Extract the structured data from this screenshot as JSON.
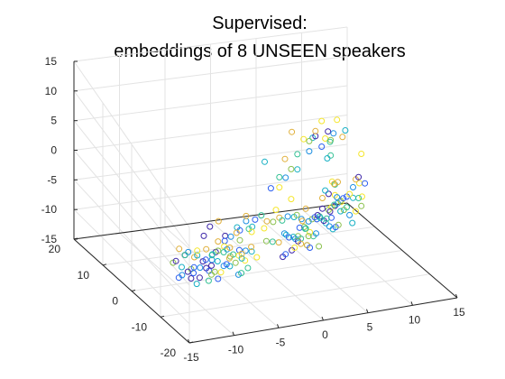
{
  "chart_data": {
    "type": "scatter",
    "subtype": "scatter3d",
    "title_lines": [
      "Supervised:",
      "embeddings of 8 UNSEEN speakers"
    ],
    "xlabel": "",
    "ylabel": "",
    "zlabel": "",
    "xlim": [
      -15,
      15
    ],
    "ylim": [
      -20,
      20
    ],
    "zlim": [
      -15,
      15
    ],
    "x_ticks": [
      -15,
      -10,
      -5,
      0,
      5,
      10,
      15
    ],
    "y_ticks": [
      -20,
      -10,
      0,
      10,
      20
    ],
    "z_ticks": [
      -15,
      -10,
      -5,
      0,
      5,
      10,
      15
    ],
    "x_tick_labels": [
      "-15",
      "-10",
      "-5",
      "0",
      "5",
      "10",
      "15"
    ],
    "y_tick_labels": [
      "-20",
      "-10",
      "0",
      "10",
      "20"
    ],
    "z_tick_labels": [
      "-15",
      "-10",
      "-5",
      "0",
      "5",
      "10",
      "15"
    ],
    "grid": true,
    "legend": "none",
    "marker": "open circle",
    "colormap": [
      "#3d26a8",
      "#2c5ff0",
      "#1d8fe1",
      "#18b0c4",
      "#35c195",
      "#8bc14e",
      "#e0b03b",
      "#f5e62a"
    ],
    "series": [
      {
        "color_index": 0,
        "points": [
          [
            -11,
            -6,
            -5
          ],
          [
            -11,
            -7,
            -8
          ],
          [
            -10,
            -5,
            -11
          ],
          [
            -9,
            -6,
            -7
          ],
          [
            -10,
            -8,
            -9
          ],
          [
            -7,
            0,
            -6
          ],
          [
            -6,
            1,
            -5
          ],
          [
            -4,
            2,
            -8
          ],
          [
            5,
            -2,
            -4
          ],
          [
            6,
            -1,
            -6
          ],
          [
            7,
            0,
            -5
          ],
          [
            4,
            4,
            -14
          ],
          [
            5,
            5,
            -13
          ],
          [
            3,
            4,
            -15
          ],
          [
            8,
            4,
            8
          ],
          [
            6,
            2,
            9
          ],
          [
            9,
            7,
            -6
          ],
          [
            10,
            8,
            -9
          ],
          [
            8,
            6,
            -8
          ],
          [
            12,
            6,
            -3
          ],
          [
            -12,
            -6,
            -6
          ],
          [
            -9,
            -9,
            -6
          ],
          [
            -8,
            -4,
            -10
          ],
          [
            -6,
            -1,
            -9
          ]
        ]
      },
      {
        "color_index": 1,
        "points": [
          [
            -9,
            -7,
            -6
          ],
          [
            -10,
            -6,
            -8
          ],
          [
            -8,
            -5,
            -10
          ],
          [
            -7,
            -8,
            -7
          ],
          [
            -5,
            -1,
            -7
          ],
          [
            -3,
            0,
            -6
          ],
          [
            -1,
            1,
            -5
          ],
          [
            3,
            -2,
            -6
          ],
          [
            5,
            -1,
            -5
          ],
          [
            7,
            -2,
            -7
          ],
          [
            4,
            5,
            -12
          ],
          [
            6,
            4,
            -14
          ],
          [
            9,
            6,
            -10
          ],
          [
            11,
            7,
            -7
          ],
          [
            10,
            5,
            -6
          ],
          [
            7,
            3,
            6
          ],
          [
            2,
            5,
            -2
          ],
          [
            -11,
            -9,
            -7
          ],
          [
            -12,
            -7,
            -9
          ],
          [
            -7,
            -5,
            -12
          ],
          [
            -4,
            -3,
            -8
          ],
          [
            3,
            3,
            -14
          ],
          [
            8,
            8,
            -11
          ],
          [
            13,
            7,
            -5
          ]
        ]
      },
      {
        "color_index": 2,
        "points": [
          [
            -8,
            -6,
            -7
          ],
          [
            -9,
            -5,
            -9
          ],
          [
            -7,
            -7,
            -8
          ],
          [
            -6,
            -5,
            -6
          ],
          [
            -4,
            0,
            -7
          ],
          [
            -2,
            1,
            -5
          ],
          [
            2,
            -1,
            -4
          ],
          [
            4,
            -2,
            -5
          ],
          [
            6,
            -3,
            -6
          ],
          [
            5,
            6,
            -13
          ],
          [
            7,
            5,
            -12
          ],
          [
            10,
            7,
            -8
          ],
          [
            11,
            6,
            -10
          ],
          [
            9,
            4,
            -5
          ],
          [
            5,
            1,
            7
          ],
          [
            8,
            2,
            9
          ],
          [
            3,
            3,
            1
          ],
          [
            -10,
            -4,
            -6
          ],
          [
            -11,
            -5,
            -10
          ],
          [
            -6,
            -9,
            -9
          ],
          [
            -3,
            -2,
            -9
          ],
          [
            1,
            -3,
            -6
          ],
          [
            12,
            8,
            -6
          ],
          [
            6,
            7,
            -10
          ]
        ]
      },
      {
        "color_index": 3,
        "points": [
          [
            -8,
            -8,
            -6
          ],
          [
            -9,
            -4,
            -7
          ],
          [
            -6,
            -6,
            -9
          ],
          [
            -7,
            -3,
            -8
          ],
          [
            -3,
            1,
            -6
          ],
          [
            -1,
            2,
            -7
          ],
          [
            3,
            0,
            -5
          ],
          [
            5,
            -3,
            -4
          ],
          [
            7,
            -1,
            -8
          ],
          [
            6,
            5,
            -14
          ],
          [
            4,
            6,
            -12
          ],
          [
            10,
            6,
            -9
          ],
          [
            12,
            8,
            -8
          ],
          [
            8,
            5,
            -4
          ],
          [
            6,
            3,
            8
          ],
          [
            9,
            1,
            10
          ],
          [
            1,
            4,
            4
          ],
          [
            -10,
            -7,
            -11
          ],
          [
            -12,
            -8,
            -6
          ],
          [
            -5,
            -7,
            -7
          ],
          [
            -2,
            -1,
            -10
          ],
          [
            2,
            -3,
            -7
          ],
          [
            11,
            5,
            -11
          ],
          [
            9,
            8,
            -12
          ],
          [
            7,
            1,
            5
          ],
          [
            4,
            2,
            3
          ]
        ]
      },
      {
        "color_index": 4,
        "points": [
          [
            -7,
            -7,
            -5
          ],
          [
            -8,
            -6,
            -6
          ],
          [
            -5,
            -4,
            -8
          ],
          [
            -9,
            -8,
            -10
          ],
          [
            -2,
            0,
            -6
          ],
          [
            0,
            2,
            -5
          ],
          [
            2,
            1,
            -6
          ],
          [
            4,
            -1,
            -7
          ],
          [
            6,
            -2,
            -5
          ],
          [
            5,
            4,
            -12
          ],
          [
            7,
            6,
            -13
          ],
          [
            9,
            5,
            -7
          ],
          [
            11,
            7,
            -9
          ],
          [
            10,
            8,
            -5
          ],
          [
            4,
            2,
            6
          ],
          [
            7,
            0,
            9
          ],
          [
            2,
            2,
            2
          ],
          [
            -11,
            -6,
            -5
          ],
          [
            -6,
            -10,
            -8
          ],
          [
            -4,
            -6,
            -10
          ],
          [
            0,
            -2,
            -8
          ],
          [
            3,
            -4,
            -5
          ],
          [
            8,
            7,
            -10
          ],
          [
            12,
            6,
            -7
          ],
          [
            8,
            3,
            4
          ]
        ]
      },
      {
        "color_index": 5,
        "points": [
          [
            -7,
            -5,
            -6
          ],
          [
            -8,
            -7,
            -9
          ],
          [
            -6,
            -8,
            -7
          ],
          [
            -10,
            -5,
            -9
          ],
          [
            -3,
            0,
            -8
          ],
          [
            1,
            1,
            -6
          ],
          [
            3,
            -1,
            -4
          ],
          [
            5,
            0,
            -6
          ],
          [
            7,
            -3,
            -6
          ],
          [
            5,
            5,
            -12
          ],
          [
            6,
            6,
            -11
          ],
          [
            9,
            7,
            -9
          ],
          [
            10,
            6,
            -7
          ],
          [
            12,
            5,
            -8
          ],
          [
            5,
            1,
            9
          ],
          [
            8,
            3,
            7
          ],
          [
            3,
            1,
            4
          ],
          [
            -9,
            -9,
            -8
          ],
          [
            -12,
            -5,
            -7
          ],
          [
            -5,
            -3,
            -9
          ],
          [
            -1,
            -3,
            -7
          ],
          [
            4,
            -2,
            -8
          ],
          [
            7,
            4,
            -14
          ],
          [
            11,
            8,
            -10
          ]
        ]
      },
      {
        "color_index": 6,
        "points": [
          [
            -6,
            -6,
            -5
          ],
          [
            -7,
            -5,
            -4
          ],
          [
            -8,
            -4,
            -6
          ],
          [
            -5,
            -7,
            -6
          ],
          [
            -9,
            -3,
            -8
          ],
          [
            -4,
            -2,
            -5
          ],
          [
            -2,
            1,
            -4
          ],
          [
            0,
            0,
            -5
          ],
          [
            2,
            2,
            -6
          ],
          [
            4,
            -1,
            -3
          ],
          [
            5,
            4,
            -13
          ],
          [
            6,
            5,
            -14
          ],
          [
            8,
            6,
            -6
          ],
          [
            10,
            7,
            -4
          ],
          [
            6,
            2,
            10
          ],
          [
            4,
            4,
            9
          ],
          [
            9,
            2,
            8
          ],
          [
            -11,
            -4,
            -5
          ],
          [
            -7,
            -9,
            -5
          ],
          [
            -3,
            -4,
            -7
          ],
          [
            1,
            -1,
            -9
          ],
          [
            3,
            -3,
            -4
          ],
          [
            12,
            7,
            -4
          ],
          [
            9,
            5,
            -3
          ],
          [
            2,
            0,
            7
          ],
          [
            -6,
            -2,
            -2
          ]
        ]
      },
      {
        "color_index": 7,
        "points": [
          [
            -6,
            -4,
            -6
          ],
          [
            -5,
            -6,
            -7
          ],
          [
            -7,
            -6,
            -10
          ],
          [
            -4,
            -5,
            -9
          ],
          [
            -2,
            -1,
            -6
          ],
          [
            0,
            1,
            -7
          ],
          [
            1,
            0,
            -3
          ],
          [
            3,
            1,
            -2
          ],
          [
            9,
            6,
            -8
          ],
          [
            10,
            8,
            -7
          ],
          [
            11,
            9,
            -9
          ],
          [
            12,
            7,
            -10
          ],
          [
            13,
            8,
            -8
          ],
          [
            10,
            9,
            -5
          ],
          [
            11,
            6,
            -6
          ],
          [
            7,
            3,
            11
          ],
          [
            9,
            4,
            10
          ],
          [
            5,
            3,
            8
          ],
          [
            8,
            5,
            6
          ],
          [
            12,
            5,
            2
          ],
          [
            6,
            4,
            -11
          ],
          [
            4,
            3,
            -13
          ],
          [
            -9,
            -4,
            -6
          ],
          [
            -3,
            -6,
            -8
          ],
          [
            2,
            2,
            0
          ],
          [
            13,
            9,
            -6
          ]
        ]
      }
    ]
  }
}
